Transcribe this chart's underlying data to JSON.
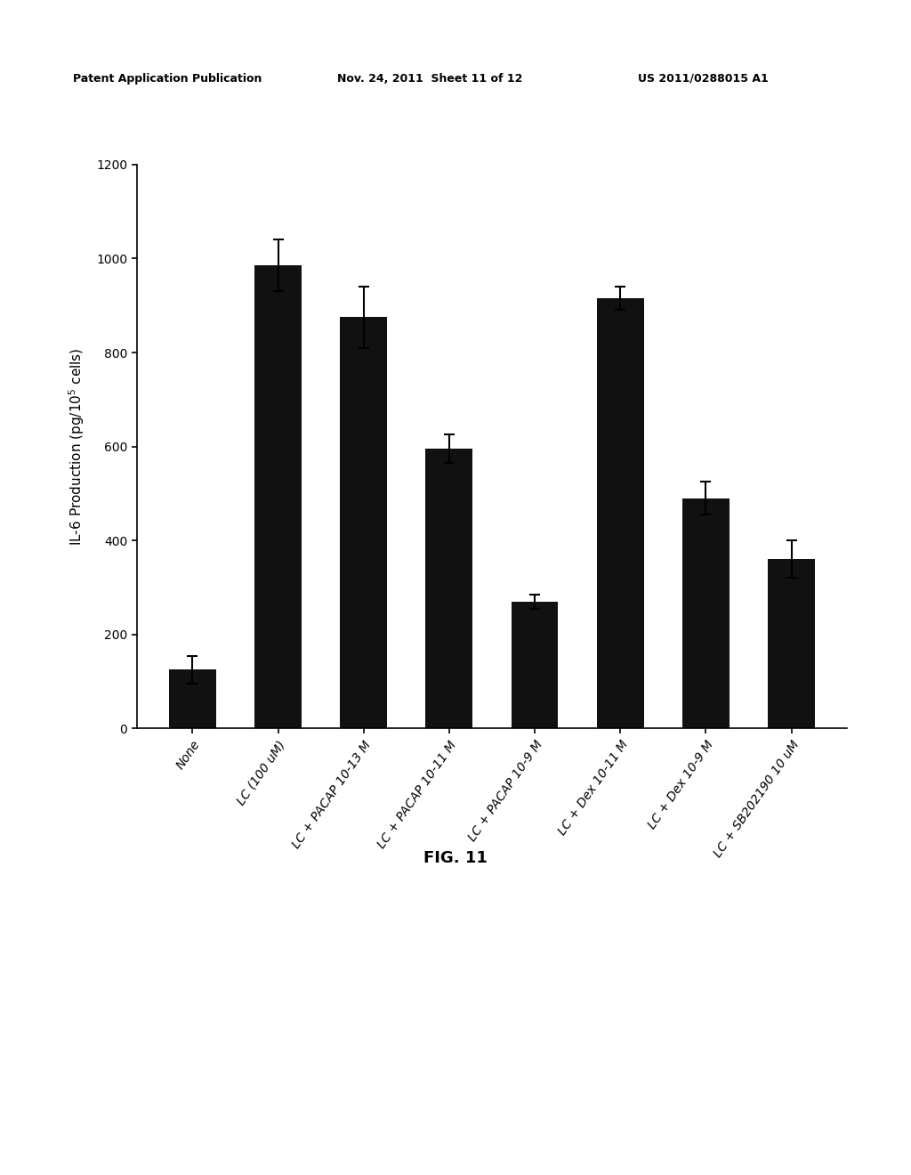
{
  "categories": [
    "None",
    "LC (100 uM)",
    "LC + PACAP 10-13 M",
    "LC + PACAP 10-11 M",
    "LC + PACAP 10-9 M",
    "LC + Dex 10-11 M",
    "LC + Dex 10-9 M",
    "LC + SB202190 10 uM"
  ],
  "values": [
    125,
    985,
    875,
    595,
    270,
    915,
    490,
    360
  ],
  "errors": [
    30,
    55,
    65,
    30,
    15,
    25,
    35,
    40
  ],
  "bar_color": "#111111",
  "ylabel": "IL-6 Production (pg/10$^5$ cells)",
  "ylim": [
    0,
    1200
  ],
  "yticks": [
    0,
    200,
    400,
    600,
    800,
    1000,
    1200
  ],
  "figure_caption": "FIG. 11",
  "header_left": "Patent Application Publication",
  "header_mid": "Nov. 24, 2011  Sheet 11 of 12",
  "header_right": "US 2011/0288015 A1",
  "background_color": "#ffffff",
  "bar_width": 0.55,
  "axis_fontsize": 11,
  "tick_fontsize": 10,
  "header_fontsize": 9,
  "caption_fontsize": 13
}
